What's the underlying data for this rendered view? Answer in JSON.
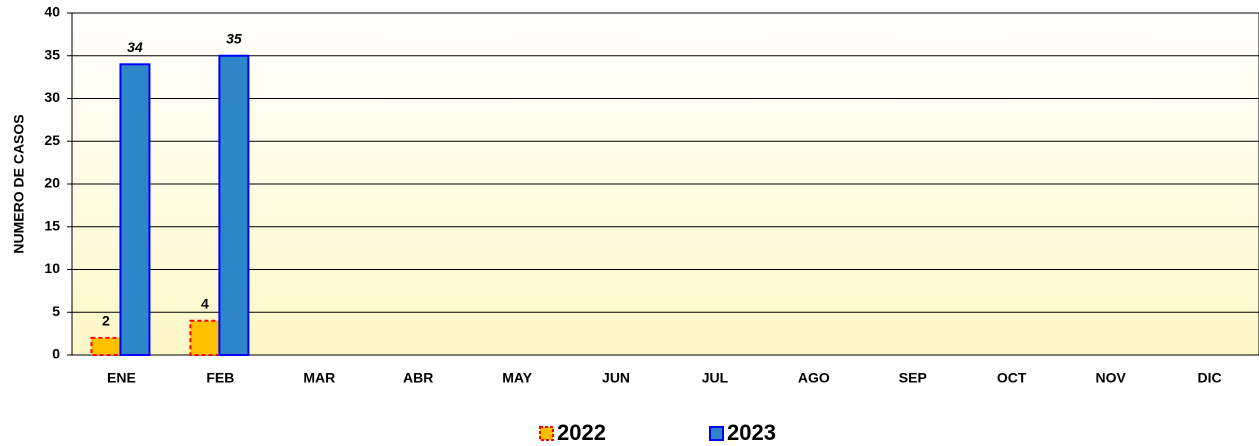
{
  "chart_data": {
    "type": "bar",
    "y_label": "NUMERO DE CASOS",
    "categories": [
      "ENE",
      "FEB",
      "MAR",
      "ABR",
      "MAY",
      "JUN",
      "JUL",
      "AGO",
      "SEP",
      "OCT",
      "NOV",
      "DIC"
    ],
    "series": [
      {
        "name": "2022",
        "color": "#ffc000",
        "border": "#ff0000",
        "values": [
          2,
          4,
          null,
          null,
          null,
          null,
          null,
          null,
          null,
          null,
          null,
          null
        ]
      },
      {
        "name": "2023",
        "color": "#2e86c8",
        "border": "#0000ff",
        "values": [
          34,
          35,
          null,
          null,
          null,
          null,
          null,
          null,
          null,
          null,
          null,
          null
        ]
      }
    ],
    "ylim": [
      0,
      40
    ],
    "yticks": [
      0,
      5,
      10,
      15,
      20,
      25,
      30,
      35,
      40
    ],
    "grid": true,
    "legend": "bottom"
  }
}
